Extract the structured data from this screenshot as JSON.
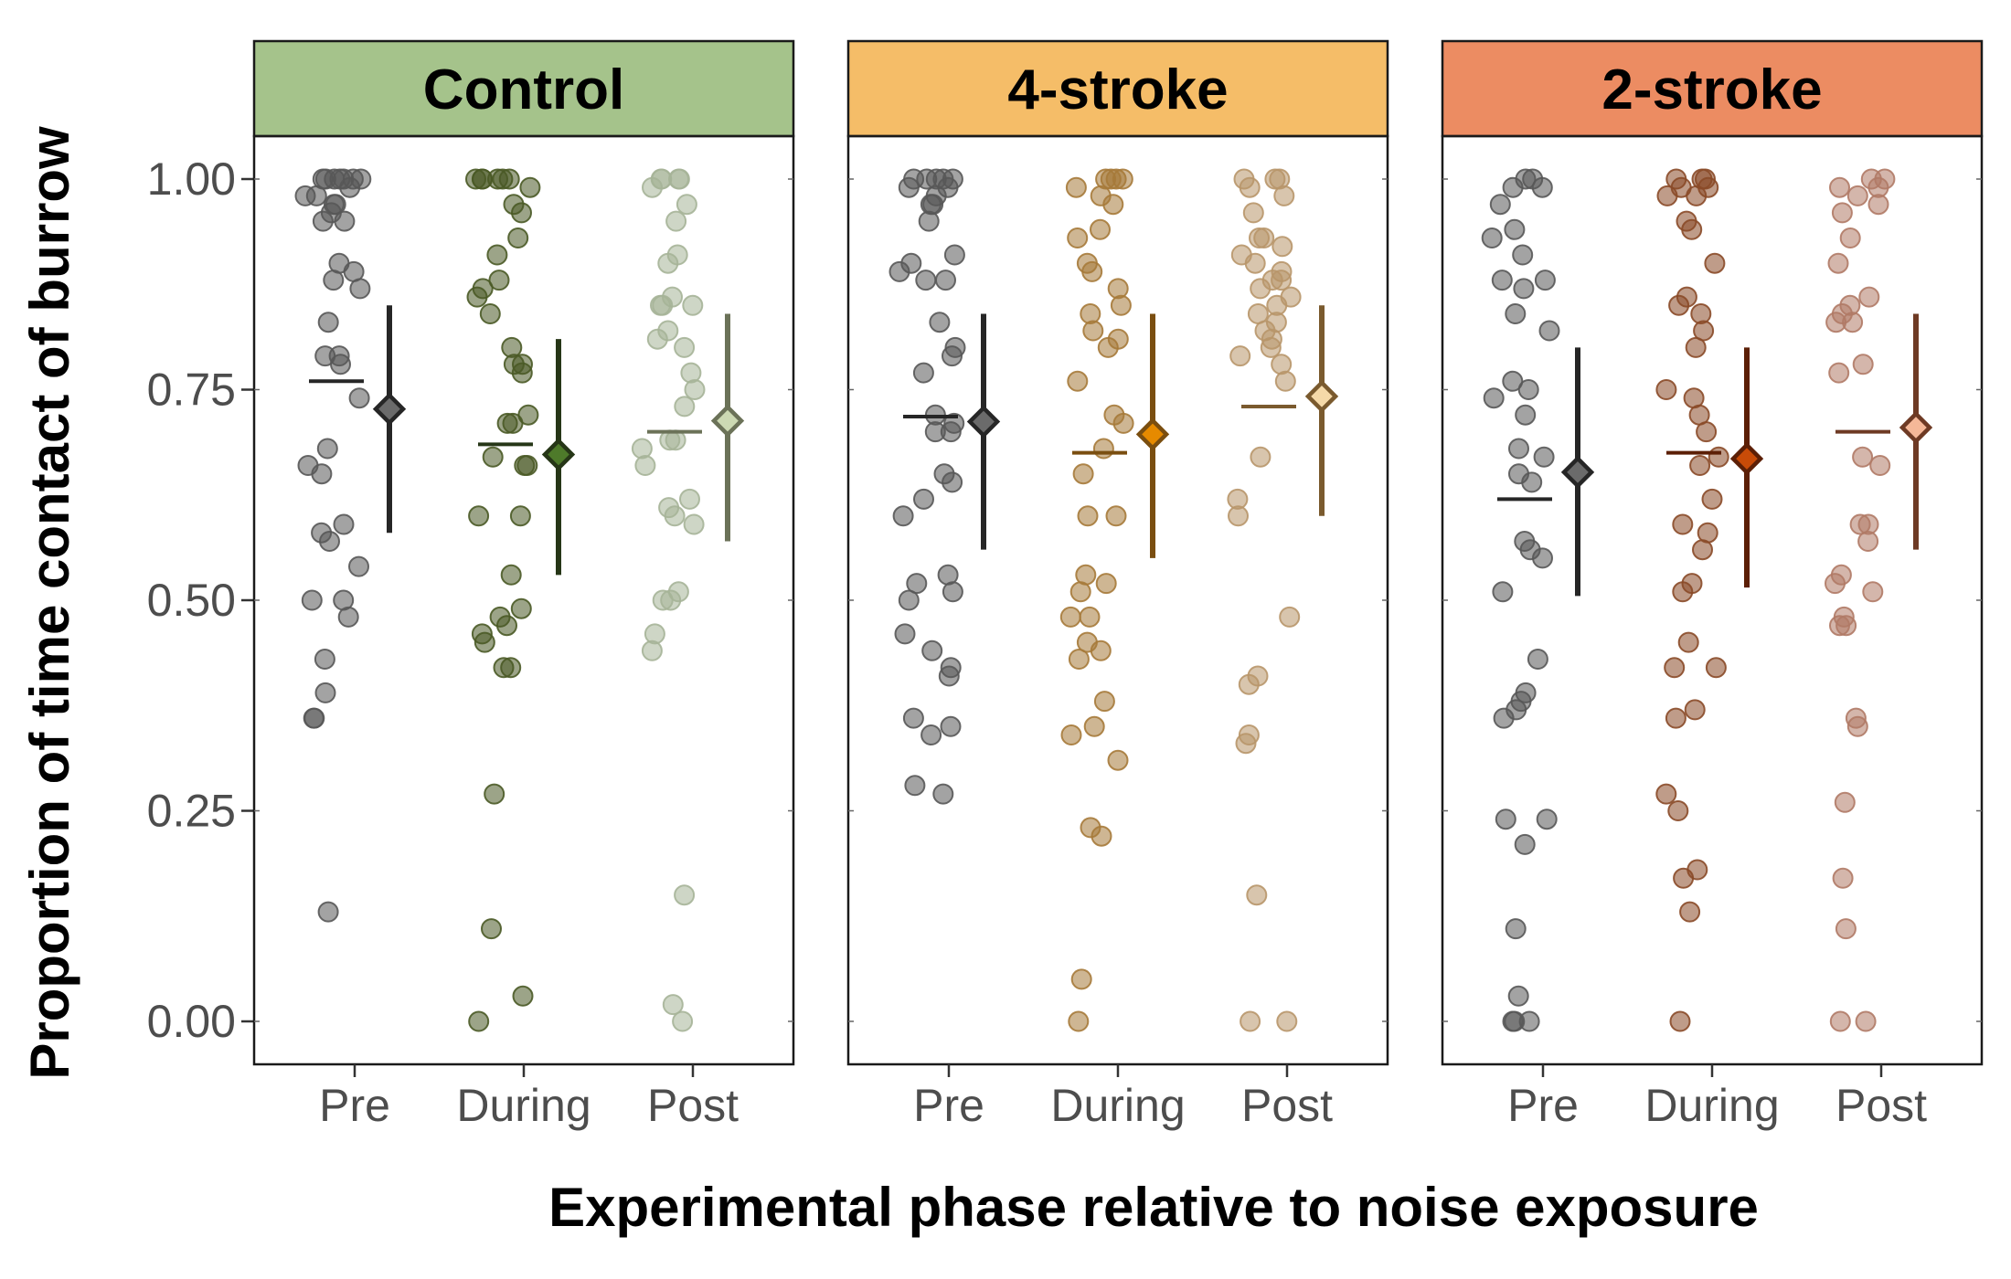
{
  "chart_data": {
    "type": "scatter",
    "subtype": "faceted jittered strip plot with point-range summaries",
    "xlabel": "Experimental phase relative to noise exposure",
    "ylabel": "Proportion of time contact of burrow",
    "categories": [
      "Pre",
      "During",
      "Post"
    ],
    "ylim": [
      -0.05,
      1.05
    ],
    "yticks": [
      0.0,
      0.25,
      0.5,
      0.75,
      1.0
    ],
    "ytick_labels": [
      "0.00",
      "0.25",
      "0.50",
      "0.75",
      "1.00"
    ],
    "grid": false,
    "legend": "none",
    "panels": [
      {
        "title": "Control",
        "strip_color": "#a5c38b",
        "point_colors": {
          "Pre": "#585858",
          "During": "#4a5a26",
          "Post": "#a6b498"
        },
        "line_colors": {
          "Pre": "#262626",
          "During": "#263617",
          "Post": "#6b7258"
        },
        "diamond_fill": {
          "Pre": "#6b6b6b",
          "During": "#4e7a2a",
          "Post": "#ccd9b3"
        },
        "series": [
          {
            "category": "Pre",
            "values": [
              1.0,
              1.0,
              1.0,
              1.0,
              1.0,
              1.0,
              1.0,
              0.99,
              0.98,
              0.98,
              0.97,
              0.97,
              0.96,
              0.95,
              0.95,
              0.9,
              0.89,
              0.88,
              0.87,
              0.83,
              0.79,
              0.79,
              0.78,
              0.74,
              0.68,
              0.66,
              0.65,
              0.59,
              0.58,
              0.57,
              0.54,
              0.5,
              0.5,
              0.48,
              0.43,
              0.39,
              0.36,
              0.36,
              0.13
            ],
            "median": 0.76,
            "mean": 0.727,
            "ci": [
              0.58,
              0.85
            ]
          },
          {
            "category": "During",
            "values": [
              1.0,
              1.0,
              1.0,
              1.0,
              1.0,
              1.0,
              0.99,
              0.97,
              0.96,
              0.93,
              0.91,
              0.88,
              0.87,
              0.86,
              0.84,
              0.8,
              0.78,
              0.78,
              0.77,
              0.72,
              0.71,
              0.71,
              0.67,
              0.66,
              0.66,
              0.6,
              0.6,
              0.53,
              0.49,
              0.48,
              0.47,
              0.46,
              0.45,
              0.42,
              0.42,
              0.27,
              0.11,
              0.03,
              0.0
            ],
            "median": 0.685,
            "mean": 0.673,
            "ci": [
              0.53,
              0.81
            ]
          },
          {
            "category": "Post",
            "values": [
              1.0,
              1.0,
              1.0,
              1.0,
              0.99,
              0.97,
              0.95,
              0.91,
              0.9,
              0.86,
              0.85,
              0.85,
              0.85,
              0.82,
              0.81,
              0.8,
              0.77,
              0.75,
              0.73,
              0.69,
              0.69,
              0.68,
              0.66,
              0.62,
              0.61,
              0.6,
              0.59,
              0.51,
              0.5,
              0.5,
              0.46,
              0.44,
              0.15,
              0.02,
              0.0
            ],
            "median": 0.7,
            "mean": 0.713,
            "ci": [
              0.57,
              0.84
            ]
          }
        ]
      },
      {
        "title": "4-stroke",
        "strip_color": "#f5bd68",
        "point_colors": {
          "Pre": "#585858",
          "During": "#a67a3a",
          "Post": "#b8966a"
        },
        "line_colors": {
          "Pre": "#262626",
          "During": "#7a4e10",
          "Post": "#7a5a2e"
        },
        "diamond_fill": {
          "Pre": "#6b6b6b",
          "During": "#e68a00",
          "Post": "#f5d9a8"
        },
        "series": [
          {
            "category": "Pre",
            "values": [
              1.0,
              1.0,
              1.0,
              1.0,
              1.0,
              0.99,
              0.99,
              0.98,
              0.97,
              0.97,
              0.95,
              0.91,
              0.9,
              0.89,
              0.88,
              0.88,
              0.83,
              0.8,
              0.79,
              0.77,
              0.72,
              0.71,
              0.7,
              0.7,
              0.65,
              0.64,
              0.62,
              0.6,
              0.53,
              0.52,
              0.51,
              0.5,
              0.46,
              0.44,
              0.42,
              0.41,
              0.36,
              0.35,
              0.34,
              0.28,
              0.27
            ],
            "median": 0.718,
            "mean": 0.712,
            "ci": [
              0.56,
              0.84
            ]
          },
          {
            "category": "During",
            "values": [
              1.0,
              1.0,
              1.0,
              1.0,
              0.99,
              0.98,
              0.97,
              0.94,
              0.93,
              0.9,
              0.89,
              0.87,
              0.85,
              0.84,
              0.82,
              0.81,
              0.8,
              0.76,
              0.72,
              0.71,
              0.68,
              0.65,
              0.6,
              0.6,
              0.53,
              0.52,
              0.51,
              0.48,
              0.48,
              0.45,
              0.44,
              0.43,
              0.38,
              0.35,
              0.34,
              0.31,
              0.23,
              0.22,
              0.05,
              0.0
            ],
            "median": 0.675,
            "mean": 0.697,
            "ci": [
              0.55,
              0.84
            ]
          },
          {
            "category": "Post",
            "values": [
              1.0,
              1.0,
              1.0,
              0.99,
              0.98,
              0.96,
              0.93,
              0.93,
              0.92,
              0.91,
              0.9,
              0.89,
              0.88,
              0.88,
              0.87,
              0.86,
              0.85,
              0.84,
              0.83,
              0.82,
              0.81,
              0.8,
              0.79,
              0.78,
              0.76,
              0.67,
              0.62,
              0.6,
              0.48,
              0.41,
              0.4,
              0.34,
              0.33,
              0.15,
              0.0,
              0.0
            ],
            "median": 0.73,
            "mean": 0.742,
            "ci": [
              0.6,
              0.85
            ]
          }
        ]
      },
      {
        "title": "2-stroke",
        "strip_color": "#ec8c62",
        "point_colors": {
          "Pre": "#585858",
          "During": "#8a4a28",
          "Post": "#b07a66"
        },
        "line_colors": {
          "Pre": "#262626",
          "During": "#5c1f06",
          "Post": "#6e3a24"
        },
        "diamond_fill": {
          "Pre": "#6b6b6b",
          "During": "#c84b08",
          "Post": "#f5b898"
        },
        "series": [
          {
            "category": "Pre",
            "values": [
              1.0,
              1.0,
              0.99,
              0.99,
              0.97,
              0.94,
              0.93,
              0.91,
              0.88,
              0.88,
              0.87,
              0.84,
              0.82,
              0.76,
              0.75,
              0.74,
              0.72,
              0.68,
              0.67,
              0.65,
              0.64,
              0.57,
              0.56,
              0.55,
              0.51,
              0.43,
              0.39,
              0.38,
              0.37,
              0.36,
              0.24,
              0.24,
              0.21,
              0.11,
              0.03,
              0.0,
              0.0,
              0.0
            ],
            "median": 0.62,
            "mean": 0.652,
            "ci": [
              0.505,
              0.8
            ]
          },
          {
            "category": "During",
            "values": [
              1.0,
              1.0,
              1.0,
              0.99,
              0.99,
              0.98,
              0.98,
              0.95,
              0.94,
              0.9,
              0.86,
              0.85,
              0.84,
              0.82,
              0.8,
              0.75,
              0.74,
              0.72,
              0.7,
              0.67,
              0.66,
              0.62,
              0.59,
              0.58,
              0.56,
              0.52,
              0.51,
              0.45,
              0.42,
              0.42,
              0.37,
              0.36,
              0.27,
              0.25,
              0.18,
              0.17,
              0.13,
              0.0
            ],
            "median": 0.675,
            "mean": 0.668,
            "ci": [
              0.515,
              0.8
            ]
          },
          {
            "category": "Post",
            "values": [
              1.0,
              1.0,
              0.99,
              0.99,
              0.98,
              0.97,
              0.96,
              0.93,
              0.9,
              0.86,
              0.85,
              0.84,
              0.83,
              0.83,
              0.78,
              0.77,
              0.67,
              0.66,
              0.59,
              0.59,
              0.57,
              0.53,
              0.52,
              0.51,
              0.48,
              0.47,
              0.47,
              0.36,
              0.35,
              0.26,
              0.17,
              0.11,
              0.0,
              0.0
            ],
            "median": 0.7,
            "mean": 0.705,
            "ci": [
              0.56,
              0.84
            ]
          }
        ]
      }
    ]
  }
}
